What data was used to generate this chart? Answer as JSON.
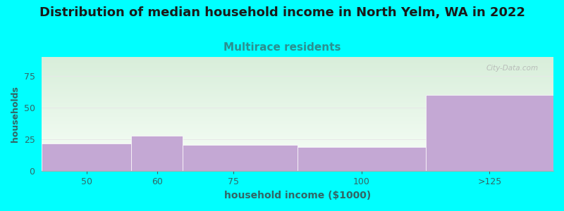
{
  "title": "Distribution of median household income in North Yelm, WA in 2022",
  "subtitle": "Multirace residents",
  "xlabel": "household income ($1000)",
  "ylabel": "households",
  "background_color": "#00FFFF",
  "bar_color": "#c4a8d4",
  "title_fontsize": 13,
  "title_color": "#1a1a1a",
  "subtitle_fontsize": 11,
  "subtitle_color": "#2a9090",
  "ylabel_color": "#336666",
  "xlabel_color": "#336666",
  "tick_label_color": "#336666",
  "grid_color": "#e8e8e8",
  "ylim": [
    0,
    90
  ],
  "yticks": [
    0,
    25,
    50,
    75
  ],
  "bin_edges": [
    37.5,
    55,
    65,
    87.5,
    112.5,
    137.5
  ],
  "bin_labels": [
    "50",
    "60",
    "75",
    "100",
    ">125"
  ],
  "xtick_positions": [
    46.25,
    60,
    75,
    100,
    125
  ],
  "bar_heights": [
    22,
    28,
    21,
    19,
    60
  ],
  "grad_top_color": "#d8eeda",
  "grad_bottom_color": "#f8fff8",
  "watermark": "City-Data.com"
}
